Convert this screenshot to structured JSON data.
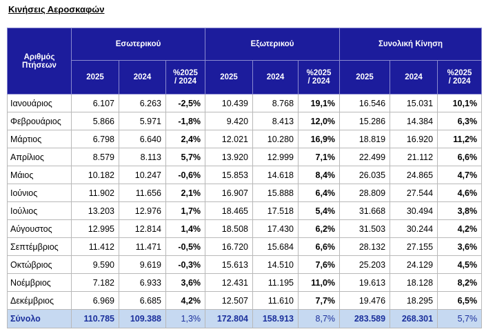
{
  "title": "Κινήσεις Αεροσκαφών",
  "table": {
    "corner": "Αριθμός Πτήσεων",
    "groups": [
      "Εσωτερικού",
      "Εξωτερικού",
      "Συνολική Κίνηση"
    ],
    "subheaders": [
      "2025",
      "2024",
      "%2025 / 2024",
      "2025",
      "2024",
      "%2025 / 2024",
      "2025",
      "2024",
      "%2025 / 2024"
    ],
    "rows": [
      [
        "Ιανουάριος",
        "6.107",
        "6.263",
        "-2,5%",
        "10.439",
        "8.768",
        "19,1%",
        "16.546",
        "15.031",
        "10,1%"
      ],
      [
        "Φεβρουάριος",
        "5.866",
        "5.971",
        "-1,8%",
        "9.420",
        "8.413",
        "12,0%",
        "15.286",
        "14.384",
        "6,3%"
      ],
      [
        "Μάρτιος",
        "6.798",
        "6.640",
        "2,4%",
        "12.021",
        "10.280",
        "16,9%",
        "18.819",
        "16.920",
        "11,2%"
      ],
      [
        "Απρίλιος",
        "8.579",
        "8.113",
        "5,7%",
        "13.920",
        "12.999",
        "7,1%",
        "22.499",
        "21.112",
        "6,6%"
      ],
      [
        "Μάιος",
        "10.182",
        "10.247",
        "-0,6%",
        "15.853",
        "14.618",
        "8,4%",
        "26.035",
        "24.865",
        "4,7%"
      ],
      [
        "Ιούνιος",
        "11.902",
        "11.656",
        "2,1%",
        "16.907",
        "15.888",
        "6,4%",
        "28.809",
        "27.544",
        "4,6%"
      ],
      [
        "Ιούλιος",
        "13.203",
        "12.976",
        "1,7%",
        "18.465",
        "17.518",
        "5,4%",
        "31.668",
        "30.494",
        "3,8%"
      ],
      [
        "Αύγουστος",
        "12.995",
        "12.814",
        "1,4%",
        "18.508",
        "17.430",
        "6,2%",
        "31.503",
        "30.244",
        "4,2%"
      ],
      [
        "Σεπτέμβριος",
        "11.412",
        "11.471",
        "-0,5%",
        "16.720",
        "15.684",
        "6,6%",
        "28.132",
        "27.155",
        "3,6%"
      ],
      [
        "Οκτώβριος",
        "9.590",
        "9.619",
        "-0,3%",
        "15.613",
        "14.510",
        "7,6%",
        "25.203",
        "24.129",
        "4,5%"
      ],
      [
        "Νοέμβριος",
        "7.182",
        "6.933",
        "3,6%",
        "12.431",
        "11.195",
        "11,0%",
        "19.613",
        "18.128",
        "8,2%"
      ],
      [
        "Δεκέμβριος",
        "6.969",
        "6.685",
        "4,2%",
        "12.507",
        "11.610",
        "7,7%",
        "19.476",
        "18.295",
        "6,5%"
      ]
    ],
    "total": [
      "Σύνολο",
      "110.785",
      "109.388",
      "1,3%",
      "172.804",
      "158.913",
      "8,7%",
      "283.589",
      "268.301",
      "5,7%"
    ]
  }
}
